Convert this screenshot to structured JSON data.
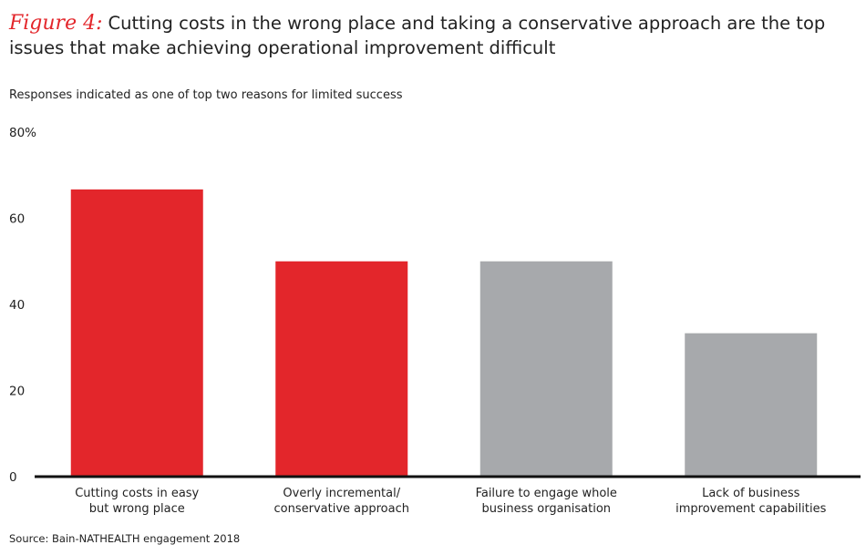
{
  "figure": {
    "label": "Figure 4:",
    "title": "Cutting costs in the wrong place and taking a conservative approach are the top issues that make achieving operational improvement difficult"
  },
  "subtitle": "Responses indicated as one of top two reasons for limited success",
  "source": "Source: Bain-NATHEALTH engagement 2018",
  "colors": {
    "highlight": "#e3262b",
    "muted": "#a7a9ac",
    "axis": "#111111"
  },
  "chart_data": {
    "type": "bar",
    "title": "Cutting costs in the wrong place and taking a conservative approach are the top issues that make achieving operational improvement difficult",
    "ylabel": "Responses indicated as one of top two reasons for limited success",
    "ylim": [
      0,
      80
    ],
    "y_ticks": [
      0,
      20,
      40,
      60,
      80
    ],
    "y_tick_labels": [
      "0",
      "20",
      "40",
      "60",
      "80%"
    ],
    "grid": false,
    "categories": [
      [
        "Cutting costs in easy",
        "but wrong place"
      ],
      [
        "Overly incremental/",
        "conservative approach"
      ],
      [
        "Failure to engage whole",
        "business organisation"
      ],
      [
        "Lack of business",
        "improvement capabilities"
      ]
    ],
    "values": [
      66.7,
      50,
      50,
      33.3
    ],
    "bar_colors": [
      "#e3262b",
      "#e3262b",
      "#a7a9ac",
      "#a7a9ac"
    ]
  }
}
